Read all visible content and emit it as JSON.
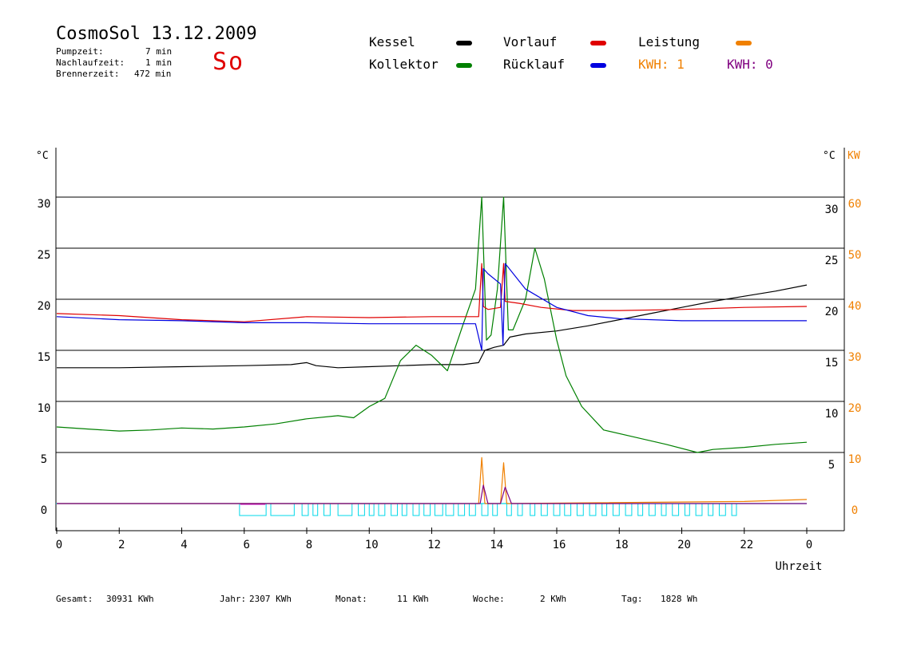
{
  "header": {
    "title": "CosmoSol 13.12.2009",
    "day": "So",
    "stats": [
      {
        "label": "Pumpzeit:",
        "value": "7 min"
      },
      {
        "label": "Nachlaufzeit:",
        "value": "1 min"
      },
      {
        "label": "Brennerzeit:",
        "value": "472 min"
      }
    ]
  },
  "legend": [
    {
      "label": "Kessel",
      "color": "#000000"
    },
    {
      "label": "Kollektor",
      "color": "#008000"
    },
    {
      "label": "Vorlauf",
      "color": "#e00000"
    },
    {
      "label": "Rücklauf",
      "color": "#0000e0"
    },
    {
      "label": "Leistung",
      "color": "#f08000"
    },
    {
      "label": "KWH: 1",
      "color": "#f08000"
    },
    {
      "label": "KWH: 0",
      "color": "#800080"
    }
  ],
  "footer": [
    {
      "label": "Gesamt:",
      "value": "30931 KWh"
    },
    {
      "label": "Jahr:",
      "value": "2307 KWh"
    },
    {
      "label": "Monat:",
      "value": "11 KWh"
    },
    {
      "label": "Woche:",
      "value": "2 KWh"
    },
    {
      "label": "Tag:",
      "value": "1828 Wh"
    }
  ],
  "chart_data": {
    "type": "line",
    "xlabel": "Uhrzeit",
    "x_ticks": [
      "0",
      "2",
      "4",
      "6",
      "8",
      "10",
      "12",
      "14",
      "16",
      "18",
      "20",
      "22",
      "0"
    ],
    "ylabel_left": "°C",
    "ylabel_right_temp": "°C",
    "ylabel_right_power": "KW",
    "y_ticks_left": [
      0,
      5,
      10,
      15,
      20,
      25,
      30
    ],
    "y_ticks_right_temp": [
      5,
      10,
      15,
      20,
      25,
      30
    ],
    "y_ticks_right_power": [
      0,
      10,
      20,
      30,
      40,
      50,
      60
    ],
    "ylim": [
      0,
      30
    ],
    "grid": true,
    "series": [
      {
        "name": "Kessel",
        "color": "#000000",
        "x": [
          0,
          2,
          4,
          6,
          7.5,
          8,
          8.3,
          9,
          10,
          11,
          12,
          13,
          13.5,
          13.7,
          14,
          14.3,
          14.5,
          15,
          16,
          17,
          18,
          19,
          20,
          21,
          22,
          23,
          24
        ],
        "y": [
          13.3,
          13.3,
          13.4,
          13.5,
          13.6,
          13.8,
          13.5,
          13.3,
          13.4,
          13.5,
          13.6,
          13.6,
          13.8,
          15,
          15.3,
          15.5,
          16.3,
          16.6,
          16.9,
          17.4,
          18.0,
          18.6,
          19.2,
          19.8,
          20.3,
          20.8,
          21.4
        ]
      },
      {
        "name": "Kollektor",
        "color": "#008000",
        "x": [
          0,
          1,
          2,
          3,
          4,
          5,
          6,
          7,
          8,
          9,
          9.5,
          10,
          10.5,
          11,
          11.5,
          12,
          12.5,
          13,
          13.4,
          13.6,
          13.75,
          13.9,
          14.1,
          14.3,
          14.45,
          14.6,
          15,
          15.3,
          15.6,
          16,
          16.3,
          16.8,
          17.5,
          18.5,
          19.5,
          20.5,
          21,
          22,
          23,
          24
        ],
        "y": [
          7.5,
          7.3,
          7.1,
          7.2,
          7.4,
          7.3,
          7.5,
          7.8,
          8.3,
          8.6,
          8.4,
          9.5,
          10.3,
          14.0,
          15.5,
          14.5,
          13.0,
          17.5,
          21.0,
          30.0,
          16.0,
          16.5,
          21.0,
          30.0,
          17.0,
          17.0,
          20.0,
          25.0,
          22.0,
          16.0,
          12.5,
          9.5,
          7.2,
          6.5,
          5.8,
          5.0,
          5.3,
          5.5,
          5.8,
          6.0
        ]
      },
      {
        "name": "Vorlauf",
        "color": "#e00000",
        "x": [
          0,
          2,
          4,
          6,
          8,
          10,
          12,
          13.5,
          13.6,
          13.65,
          13.8,
          14.2,
          14.3,
          14.35,
          14.8,
          15.5,
          16.5,
          18,
          20,
          22,
          24
        ],
        "y": [
          18.6,
          18.4,
          18.0,
          17.8,
          18.3,
          18.2,
          18.3,
          18.3,
          23.5,
          19.3,
          19.0,
          19.2,
          23.5,
          19.8,
          19.6,
          19.2,
          18.9,
          18.9,
          19.0,
          19.2,
          19.3
        ]
      },
      {
        "name": "Rücklauf",
        "color": "#0000e0",
        "x": [
          0,
          2,
          4,
          6,
          8,
          10,
          12,
          13.4,
          13.6,
          13.65,
          13.8,
          14.2,
          14.28,
          14.35,
          15,
          16,
          17,
          18,
          20,
          22,
          24
        ],
        "y": [
          18.3,
          18.0,
          17.9,
          17.7,
          17.7,
          17.6,
          17.6,
          17.6,
          15.0,
          23.0,
          22.5,
          21.5,
          15.5,
          23.5,
          21.0,
          19.2,
          18.4,
          18.1,
          17.9,
          17.9,
          17.9
        ]
      },
      {
        "name": "Leistung",
        "color": "#f08000",
        "x": [
          0,
          13.5,
          13.6,
          13.7,
          14.2,
          14.3,
          14.4,
          22,
          24
        ],
        "y": [
          0,
          0,
          4.5,
          0,
          0,
          4.0,
          0,
          0.2,
          0.4
        ]
      },
      {
        "name": "KWH: 0",
        "color": "#800080",
        "x": [
          0,
          13.55,
          13.65,
          13.8,
          14.2,
          14.35,
          14.55,
          24
        ],
        "y": [
          0,
          0,
          1.8,
          0,
          0,
          1.6,
          0,
          0
        ]
      }
    ],
    "burner_blocks": [
      {
        "start": 5.85,
        "end": 6.7
      },
      {
        "start": 6.85,
        "end": 7.6
      },
      {
        "start": 7.85,
        "end": 8.05
      },
      {
        "start": 8.2,
        "end": 8.35
      },
      {
        "start": 8.55,
        "end": 8.75
      },
      {
        "start": 9.0,
        "end": 9.45
      },
      {
        "start": 9.65,
        "end": 9.85
      },
      {
        "start": 10.0,
        "end": 10.15
      },
      {
        "start": 10.3,
        "end": 10.5
      },
      {
        "start": 10.7,
        "end": 10.9
      },
      {
        "start": 11.05,
        "end": 11.2
      },
      {
        "start": 11.4,
        "end": 11.6
      },
      {
        "start": 11.75,
        "end": 11.95
      },
      {
        "start": 12.1,
        "end": 12.35
      },
      {
        "start": 12.45,
        "end": 12.7
      },
      {
        "start": 12.85,
        "end": 13.05
      },
      {
        "start": 13.2,
        "end": 13.4
      },
      {
        "start": 13.6,
        "end": 13.8
      },
      {
        "start": 13.95,
        "end": 14.1
      },
      {
        "start": 14.4,
        "end": 14.55
      },
      {
        "start": 14.75,
        "end": 14.9
      },
      {
        "start": 15.15,
        "end": 15.3
      },
      {
        "start": 15.5,
        "end": 15.7
      },
      {
        "start": 15.9,
        "end": 16.1
      },
      {
        "start": 16.25,
        "end": 16.45
      },
      {
        "start": 16.65,
        "end": 16.85
      },
      {
        "start": 17.05,
        "end": 17.25
      },
      {
        "start": 17.45,
        "end": 17.6
      },
      {
        "start": 17.8,
        "end": 18.0
      },
      {
        "start": 18.2,
        "end": 18.4
      },
      {
        "start": 18.6,
        "end": 18.75
      },
      {
        "start": 18.95,
        "end": 19.15
      },
      {
        "start": 19.35,
        "end": 19.5
      },
      {
        "start": 19.7,
        "end": 19.9
      },
      {
        "start": 20.1,
        "end": 20.25
      },
      {
        "start": 20.45,
        "end": 20.65
      },
      {
        "start": 20.85,
        "end": 21.0
      },
      {
        "start": 21.2,
        "end": 21.4
      },
      {
        "start": 21.6,
        "end": 21.75
      }
    ]
  }
}
